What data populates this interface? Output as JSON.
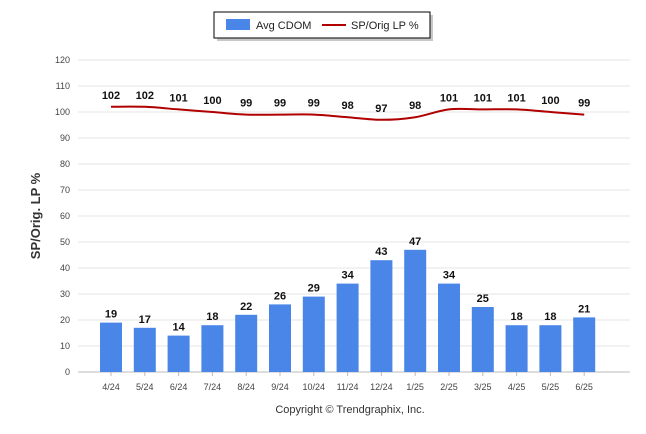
{
  "chart_data": {
    "type": "bar",
    "categories": [
      "4/24",
      "5/24",
      "6/24",
      "7/24",
      "8/24",
      "9/24",
      "10/24",
      "11/24",
      "12/24",
      "1/25",
      "2/25",
      "3/25",
      "4/25",
      "5/25",
      "6/25"
    ],
    "series": [
      {
        "name": "Avg CDOM",
        "type": "bar",
        "color": "#4a86e8",
        "values": [
          19,
          17,
          14,
          18,
          22,
          26,
          29,
          34,
          43,
          47,
          34,
          25,
          18,
          18,
          21
        ]
      },
      {
        "name": "SP/Orig LP %",
        "type": "line",
        "color": "#b00000",
        "values": [
          102,
          102,
          101,
          100,
          99,
          99,
          99,
          98,
          97,
          98,
          101,
          101,
          101,
          100,
          99
        ]
      }
    ],
    "ylabel": "SP/Orig. LP %",
    "ylim": [
      0,
      120
    ],
    "yticks": [
      0,
      10,
      20,
      30,
      40,
      50,
      60,
      70,
      80,
      90,
      100,
      110,
      120
    ],
    "grid": true,
    "legend_position": "top-center"
  },
  "footer": {
    "copyright": "Copyright © Trendgraphix, Inc."
  }
}
